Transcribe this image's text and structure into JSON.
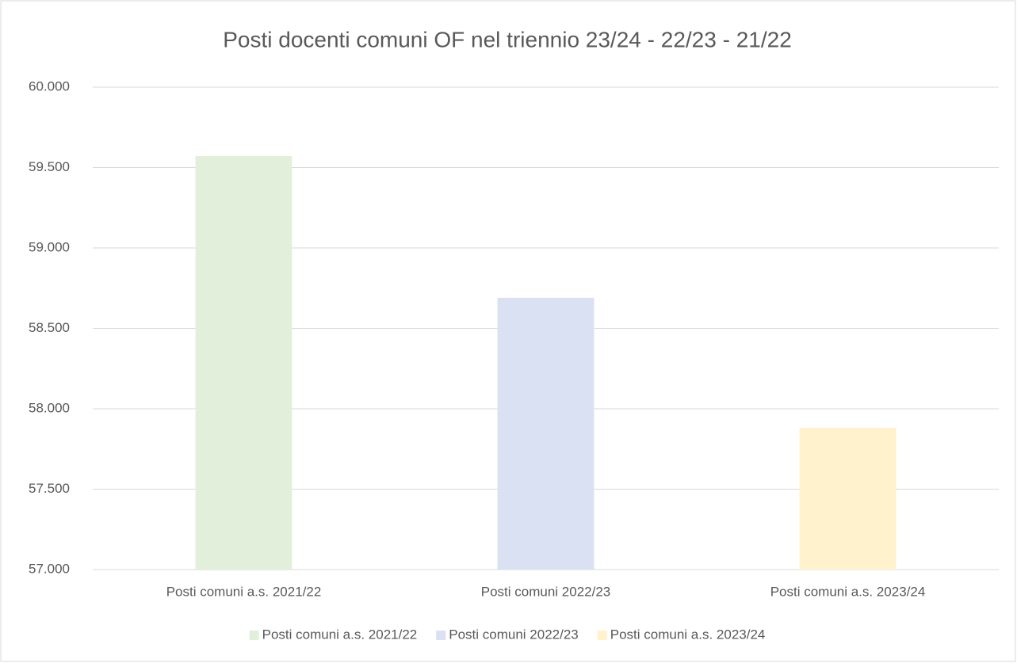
{
  "chart_data": {
    "type": "bar",
    "title": "Posti docenti comuni OF nel triennio 23/24 - 22/23 - 21/22",
    "categories": [
      "Posti comuni a.s. 2021/22",
      "Posti comuni 2022/23",
      "Posti comuni a.s. 2023/24"
    ],
    "series": [
      {
        "name": "Posti comuni a.s. 2021/22",
        "color": "#e2efda",
        "values": [
          59571,
          null,
          null
        ]
      },
      {
        "name": "Posti comuni 2022/23",
        "color": "#d9e1f2",
        "values": [
          null,
          58690,
          null
        ]
      },
      {
        "name": "Posti comuni a.s. 2023/24",
        "color": "#fff2cc",
        "values": [
          null,
          null,
          57882
        ]
      }
    ],
    "ylim": [
      57000,
      60000
    ],
    "yticks": [
      {
        "value": 57000,
        "label": "57.000"
      },
      {
        "value": 57500,
        "label": "57.500"
      },
      {
        "value": 58000,
        "label": "58.000"
      },
      {
        "value": 58500,
        "label": "58.500"
      },
      {
        "value": 59000,
        "label": "59.000"
      },
      {
        "value": 59500,
        "label": "59.500"
      },
      {
        "value": 60000,
        "label": "60.000"
      }
    ],
    "grid": true,
    "legend": "bottom"
  }
}
